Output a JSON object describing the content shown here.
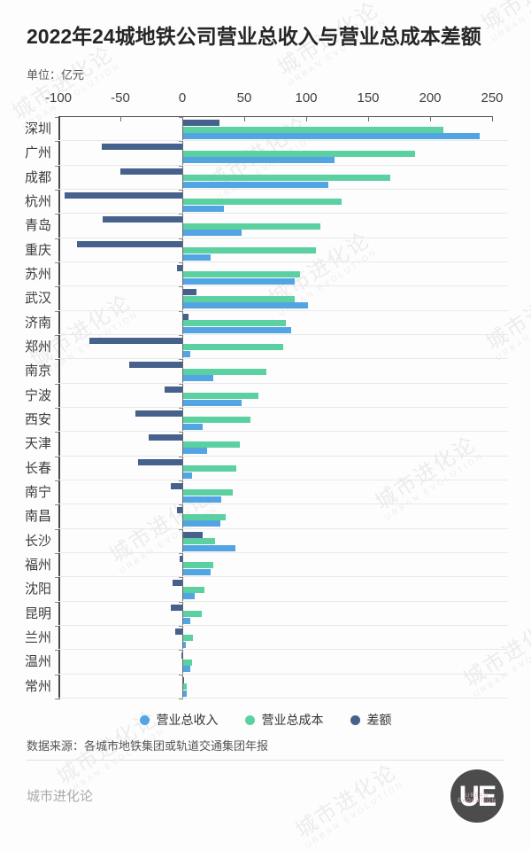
{
  "header": {
    "title": "2022年24城地铁公司营业总收入与营业总成本差额",
    "unit_label": "单位：亿元"
  },
  "chart_data": {
    "type": "bar",
    "orientation": "horizontal",
    "title": "2022年24城地铁公司营业总收入与营业总成本差额",
    "unit": "亿元",
    "xlim": [
      -100,
      250
    ],
    "x_ticks": [
      -100,
      -50,
      0,
      50,
      100,
      150,
      200,
      250
    ],
    "grid": "horizontal row separators on",
    "legend_position": "bottom",
    "categories": [
      "深圳",
      "广州",
      "成都",
      "杭州",
      "青岛",
      "重庆",
      "苏州",
      "武汉",
      "济南",
      "郑州",
      "南京",
      "宁波",
      "西安",
      "天津",
      "长春",
      "南宁",
      "南昌",
      "长沙",
      "福州",
      "沈阳",
      "昆明",
      "兰州",
      "温州",
      "常州"
    ],
    "series": [
      {
        "name": "营业总收入",
        "color": "#53A4E2",
        "values": [
          239,
          122,
          117,
          33,
          47,
          22,
          90,
          101,
          87,
          6,
          24,
          47,
          16,
          19,
          7,
          31,
          30,
          42,
          22,
          9,
          6,
          2,
          6,
          3
        ]
      },
      {
        "name": "营业总成本",
        "color": "#5BD0A1",
        "values": [
          210,
          187,
          167,
          128,
          111,
          107,
          94,
          90,
          83,
          81,
          67,
          61,
          54,
          46,
          43,
          40,
          34,
          26,
          24,
          17,
          15,
          8,
          7,
          2.5
        ]
      },
      {
        "name": "差额",
        "color": "#46618C",
        "values": [
          29,
          -65,
          -50,
          -95,
          -64,
          -85,
          -4,
          11,
          4,
          -75,
          -43,
          -14,
          -38,
          -27,
          -36,
          -9,
          -4,
          16,
          -2,
          -8,
          -9,
          -6,
          -1,
          0.5
        ]
      }
    ]
  },
  "source_note": "数据来源：各城市地铁集团或轨道交通集团年报",
  "footer": {
    "brand": "城市进化论",
    "logo_initials": "UE",
    "logo_caption": "URBAN EVOLUTION"
  },
  "watermark": {
    "text": "城市进化论",
    "subtext": "URBAN EVOLUTION"
  }
}
